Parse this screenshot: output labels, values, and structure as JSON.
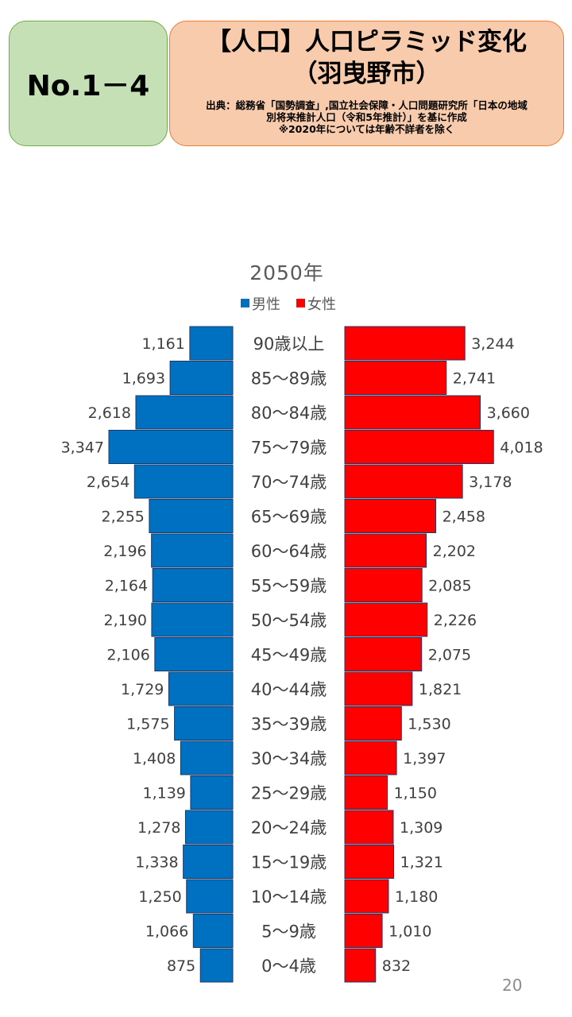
{
  "header": {
    "number": "No.1－4",
    "title_line1": "【人口】人口ピラミッド変化",
    "title_line2": "（羽曳野市）",
    "source": "出典：総務省「国勢調査」,国立社会保障・人口問題研究所「日本の地域\n別将来推計人口（令和5年推計）」を基に作成\n※2020年については年齢不詳者を除く"
  },
  "chart_data": {
    "type": "bar",
    "orientation": "horizontal-pyramid",
    "title": "2050年",
    "legend_position": "top",
    "categories": [
      "90歳以上",
      "85～89歳",
      "80～84歳",
      "75～79歳",
      "70～74歳",
      "65～69歳",
      "60～64歳",
      "55～59歳",
      "50～54歳",
      "45～49歳",
      "40～44歳",
      "35～39歳",
      "30～34歳",
      "25～29歳",
      "20～24歳",
      "15～19歳",
      "10～14歳",
      "5～9歳",
      "0～4歳"
    ],
    "series": [
      {
        "name": "男性",
        "color": "#0070c0",
        "side": "left",
        "values": [
          1161,
          1693,
          2618,
          3347,
          2654,
          2255,
          2196,
          2164,
          2190,
          2106,
          1729,
          1575,
          1408,
          1139,
          1278,
          1338,
          1250,
          1066,
          875
        ],
        "labels": [
          "1,161",
          "1,693",
          "2,618",
          "3,347",
          "2,654",
          "2,255",
          "2,196",
          "2,164",
          "2,190",
          "2,106",
          "1,729",
          "1,575",
          "1,408",
          "1,139",
          "1,278",
          "1,338",
          "1,250",
          "1,066",
          "875"
        ]
      },
      {
        "name": "女性",
        "color": "#ff0000",
        "side": "right",
        "values": [
          3244,
          2741,
          3660,
          4018,
          3178,
          2458,
          2202,
          2085,
          2226,
          2075,
          1821,
          1530,
          1397,
          1150,
          1309,
          1321,
          1180,
          1010,
          832
        ],
        "labels": [
          "3,244",
          "2,741",
          "3,660",
          "4,018",
          "3,178",
          "2,458",
          "2,202",
          "2,085",
          "2,226",
          "2,075",
          "1,821",
          "1,530",
          "1,397",
          "1,150",
          "1,309",
          "1,321",
          "1,180",
          "1,010",
          "832"
        ]
      }
    ],
    "xlim": [
      0,
      4500
    ],
    "grid": false
  },
  "footer": {
    "page_number": "20"
  }
}
